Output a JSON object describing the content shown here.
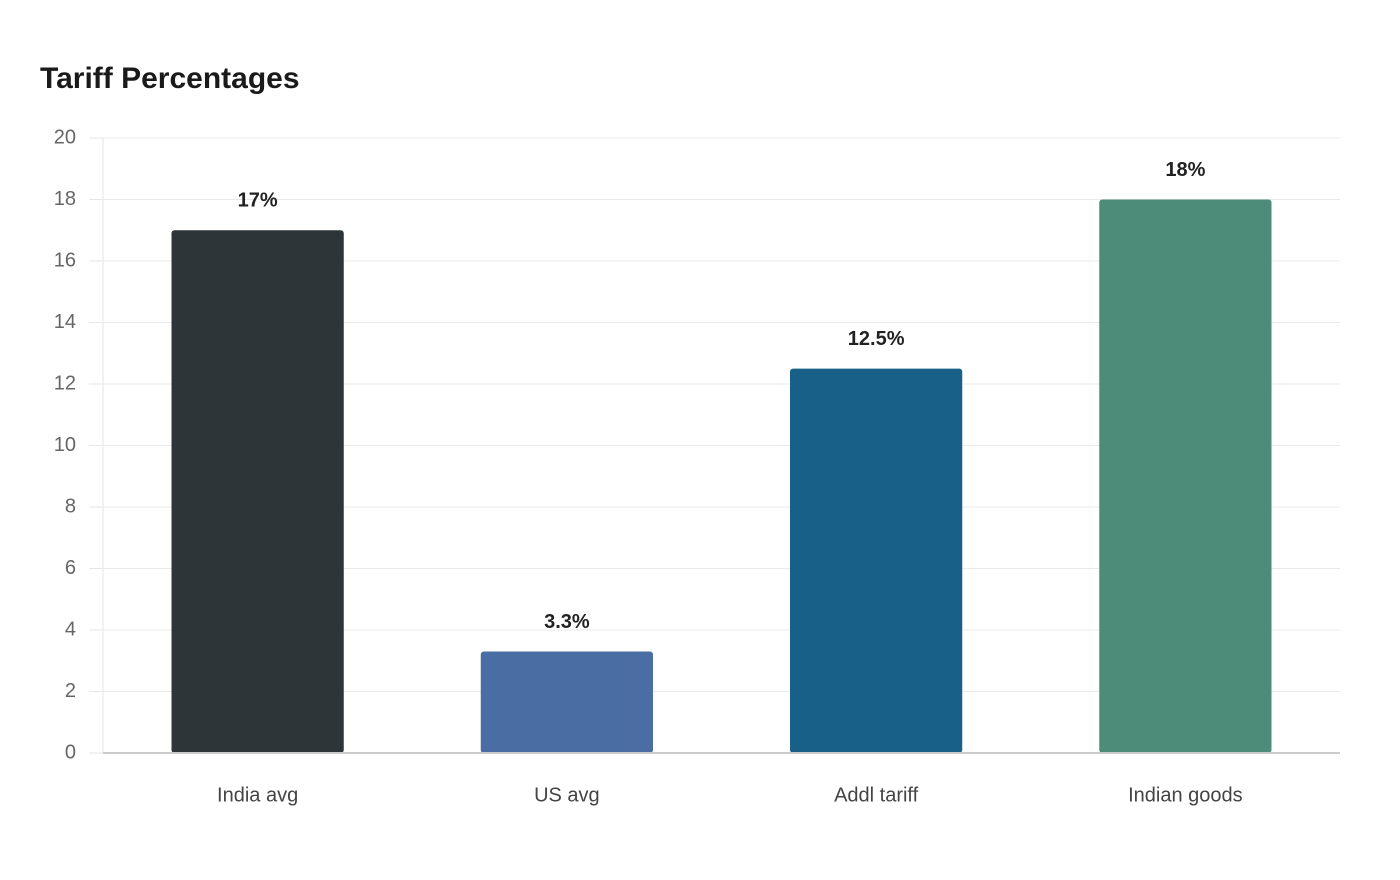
{
  "chart_data": {
    "type": "bar",
    "title": "Tariff Percentages",
    "categories": [
      "India avg",
      "US avg",
      "Addl tariff",
      "Indian goods"
    ],
    "values": [
      17,
      3.3,
      12.5,
      18
    ],
    "value_labels": [
      "17%",
      "3.3%",
      "12.5%",
      "18%"
    ],
    "colors": [
      "#2d3538",
      "#4a6ea3",
      "#186088",
      "#4e8c7a"
    ],
    "ylim": [
      0,
      20
    ],
    "yticks": [
      0,
      2,
      4,
      6,
      8,
      10,
      12,
      14,
      16,
      18,
      20
    ],
    "grid": true
  }
}
